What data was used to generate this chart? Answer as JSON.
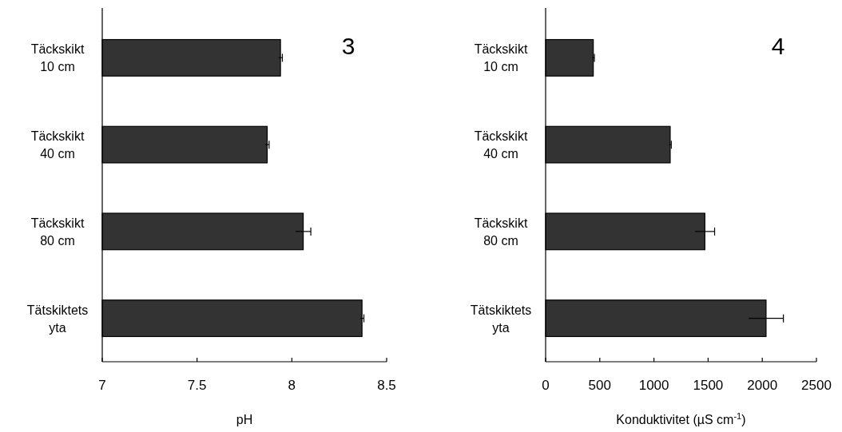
{
  "chart_data": [
    {
      "type": "bar",
      "orientation": "horizontal",
      "title": "3",
      "xlabel": "pH",
      "categories": [
        "Täckskikt 10 cm",
        "Täckskikt 40 cm",
        "Täckskikt 80 cm",
        "Tätskiktets yta"
      ],
      "values": [
        7.94,
        7.87,
        8.06,
        8.37
      ],
      "errors": [
        0.01,
        0.01,
        0.04,
        0.01
      ],
      "color": "#333333",
      "xlim": [
        7,
        8.5
      ],
      "xticks": [
        7,
        7.5,
        8,
        8.5
      ],
      "grid": false
    },
    {
      "type": "bar",
      "orientation": "horizontal",
      "title": "4",
      "xlabel": "Konduktivitet (µS cm$^{-1}$)",
      "categories": [
        "Täckskikt 10 cm",
        "Täckskikt 40 cm",
        "Täckskikt 80 cm",
        "Tätskiktets yta"
      ],
      "values": [
        440,
        1150,
        1470,
        2035
      ],
      "errors": [
        10,
        10,
        90,
        160
      ],
      "color": "#333333",
      "xlim": [
        0,
        2500
      ],
      "xticks": [
        0,
        500,
        1000,
        1500,
        2000,
        2500
      ],
      "grid": false
    }
  ]
}
